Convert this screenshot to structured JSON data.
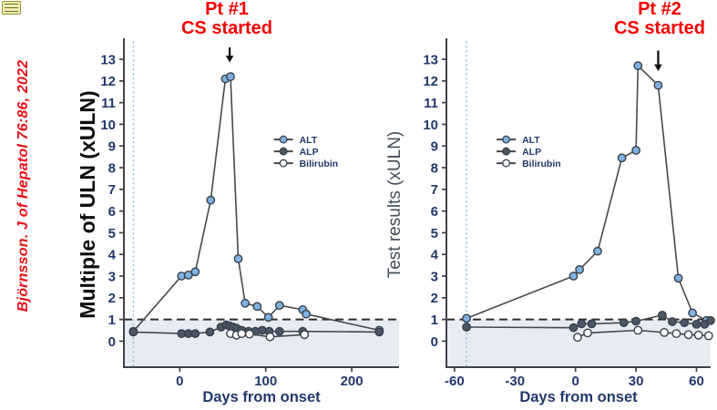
{
  "page": {
    "background": "#ffffff"
  },
  "note_icon": {
    "type": "sticky-note"
  },
  "citation": {
    "text": "Björnsson. J of Hepatol 76:86, 2022",
    "color": "#ea1016"
  },
  "annotations": [
    {
      "id": "pt1",
      "line1": "Pt #1",
      "line2": "CS started",
      "color": "#f60000"
    },
    {
      "id": "pt2",
      "line1": "Pt #2",
      "line2": "CS started",
      "color": "#f60000"
    }
  ],
  "colors": {
    "alt_marker": "#7fb1e0",
    "alp_marker": "#4a5663",
    "bilirubin_marker": "#ffffff",
    "marker_stroke": "#38414b",
    "line": "#45494e",
    "axis": "#3d4349",
    "tick_text": "#21386b",
    "shade": "#e7ecf3",
    "dotted_vline": "#9cc2e5",
    "dashed_refline": "#2e2e2e",
    "arrow": "#111111"
  },
  "chart_data": [
    {
      "type": "line",
      "title": "Pt #1",
      "xlabel": "Days from onset",
      "ylabel": "Multiple of ULN (xULN)",
      "ylabel_color": "#0d0d0d",
      "xlim": [
        -65,
        255
      ],
      "ylim": [
        -1.2,
        13.8
      ],
      "xticks": [
        0,
        100,
        200
      ],
      "yticks": [
        0,
        1,
        2,
        3,
        4,
        5,
        6,
        7,
        8,
        9,
        10,
        11,
        12,
        13
      ],
      "grid": false,
      "legend": [
        "ALT",
        "ALP",
        "Bilirubin"
      ],
      "legend_position": "inside-mid-right",
      "reference_line_y": 1,
      "shaded_region": {
        "from_y": -1.2,
        "to_y": 1
      },
      "dotted_vline_x": -54,
      "arrow": {
        "x": 58,
        "y_from": 13.55,
        "y_to": 12.85
      },
      "series": [
        {
          "name": "ALT",
          "marker_fill": "#7fb1e0",
          "points": [
            [
              -54,
              0.45
            ],
            [
              2,
              3.0
            ],
            [
              10,
              3.05
            ],
            [
              18,
              3.2
            ],
            [
              36,
              6.5
            ],
            [
              53,
              12.1
            ],
            [
              59,
              12.2
            ],
            [
              68,
              3.8
            ],
            [
              76,
              1.75
            ],
            [
              90,
              1.6
            ],
            [
              103,
              1.1
            ],
            [
              116,
              1.65
            ],
            [
              143,
              1.45
            ],
            [
              147,
              1.25
            ],
            [
              232,
              0.5
            ]
          ]
        },
        {
          "name": "ALP",
          "marker_fill": "#4a5663",
          "points": [
            [
              -54,
              0.42
            ],
            [
              2,
              0.35
            ],
            [
              10,
              0.35
            ],
            [
              18,
              0.35
            ],
            [
              35,
              0.42
            ],
            [
              48,
              0.65
            ],
            [
              54,
              0.75
            ],
            [
              58,
              0.7
            ],
            [
              62,
              0.65
            ],
            [
              66,
              0.6
            ],
            [
              72,
              0.5
            ],
            [
              80,
              0.45
            ],
            [
              88,
              0.45
            ],
            [
              96,
              0.5
            ],
            [
              104,
              0.45
            ],
            [
              116,
              0.45
            ],
            [
              143,
              0.45
            ],
            [
              232,
              0.42
            ]
          ]
        },
        {
          "name": "Bilirubin",
          "marker_fill": "#ffffff",
          "points": [
            [
              59,
              0.35
            ],
            [
              66,
              0.28
            ],
            [
              72,
              0.35
            ],
            [
              81,
              0.33
            ],
            [
              105,
              0.2
            ],
            [
              145,
              0.3
            ]
          ]
        }
      ]
    },
    {
      "type": "line",
      "title": "Pt #2",
      "xlabel": "Days from onset",
      "ylabel": "Test results (xULN)",
      "ylabel_color": "#414d59",
      "xlim": [
        -64,
        67
      ],
      "ylim": [
        -1.2,
        13.8
      ],
      "xticks": [
        -60,
        -30,
        0,
        30,
        60
      ],
      "yticks": [
        0,
        1,
        2,
        3,
        4,
        5,
        6,
        7,
        8,
        9,
        10,
        11,
        12,
        13
      ],
      "grid": false,
      "legend": [
        "ALT",
        "ALP",
        "Bilirubin"
      ],
      "legend_position": "inside-mid-left",
      "reference_line_y": 1,
      "shaded_region": {
        "from_y": -1.2,
        "to_y": 1
      },
      "dotted_vline_x": -54,
      "arrow": {
        "x": 41,
        "y_from": 13.4,
        "y_to": 12.45
      },
      "series": [
        {
          "name": "ALT",
          "marker_fill": "#7fb1e0",
          "points": [
            [
              -54,
              1.05
            ],
            [
              -1,
              3.0
            ],
            [
              2,
              3.3
            ],
            [
              11,
              4.15
            ],
            [
              23,
              8.45
            ],
            [
              30,
              8.8
            ],
            [
              31,
              12.7
            ],
            [
              41,
              11.8
            ],
            [
              51,
              2.9
            ],
            [
              58,
              1.3
            ],
            [
              65,
              0.95
            ]
          ]
        },
        {
          "name": "ALP",
          "marker_fill": "#4a5663",
          "points": [
            [
              -54,
              0.65
            ],
            [
              -1,
              0.62
            ],
            [
              3,
              0.8
            ],
            [
              8,
              0.8
            ],
            [
              24,
              0.85
            ],
            [
              30,
              0.92
            ],
            [
              43,
              1.2
            ],
            [
              48,
              0.9
            ],
            [
              54,
              0.85
            ],
            [
              60,
              0.78
            ],
            [
              64,
              0.78
            ],
            [
              67,
              0.95
            ]
          ]
        },
        {
          "name": "Bilirubin",
          "marker_fill": "#ffffff",
          "points": [
            [
              1,
              0.18
            ],
            [
              6,
              0.38
            ],
            [
              31,
              0.5
            ],
            [
              44,
              0.4
            ],
            [
              50,
              0.35
            ],
            [
              56,
              0.3
            ],
            [
              61,
              0.28
            ],
            [
              66,
              0.25
            ]
          ]
        }
      ]
    }
  ]
}
